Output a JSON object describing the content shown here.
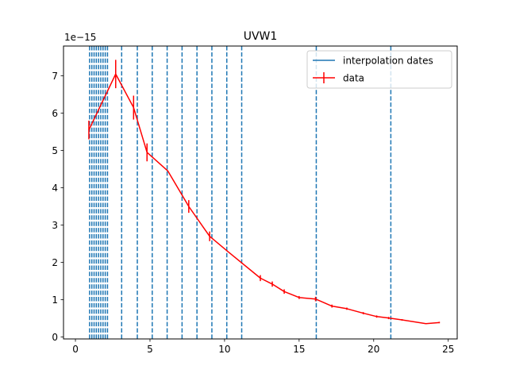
{
  "chart_data": {
    "type": "line",
    "title": "UVW1",
    "xlabel": "",
    "ylabel": "",
    "offset_label": "1e−15",
    "xlim": [
      -0.8,
      25.6
    ],
    "ylim": [
      -0.05,
      7.8
    ],
    "y_scale_factor": 1e-15,
    "x_ticks": [
      0,
      5,
      10,
      15,
      20,
      25
    ],
    "y_ticks": [
      0,
      1,
      2,
      3,
      4,
      5,
      6,
      7
    ],
    "x_tick_labels": [
      "0",
      "5",
      "10",
      "15",
      "20",
      "25"
    ],
    "y_tick_labels": [
      "0",
      "1",
      "2",
      "3",
      "4",
      "5",
      "6",
      "7"
    ],
    "legend_position": "top-right",
    "grid": false,
    "colors": {
      "interpolation": "#1f77b4",
      "data": "#ff0000"
    },
    "interpolation_dates": [
      0.95,
      1.1,
      1.25,
      1.4,
      1.55,
      1.7,
      1.85,
      2.0,
      2.15,
      3.1,
      4.15,
      5.15,
      6.15,
      7.15,
      8.15,
      9.15,
      10.15,
      11.15,
      16.15,
      21.15
    ],
    "series": [
      {
        "name": "data",
        "x": [
          0.9,
          2.7,
          3.9,
          4.8,
          6.2,
          7.6,
          9.0,
          10.2,
          12.4,
          13.2,
          14.0,
          15.0,
          16.1,
          17.2,
          18.2,
          19.3,
          20.2,
          21.0,
          21.9,
          23.5,
          24.4
        ],
        "y": [
          5.55,
          7.05,
          6.15,
          4.95,
          4.45,
          3.5,
          2.7,
          2.3,
          1.58,
          1.42,
          1.22,
          1.06,
          1.02,
          0.83,
          0.76,
          0.64,
          0.55,
          0.51,
          0.46,
          0.36,
          0.39
        ],
        "yerr": [
          0.25,
          0.38,
          0.32,
          0.24,
          0.0,
          0.17,
          0.13,
          0.0,
          0.08,
          0.07,
          0.06,
          0.04,
          0.06,
          0.04,
          0.03,
          0.03,
          0.03,
          0.03,
          0.02,
          0.0,
          0.02
        ]
      }
    ],
    "legend": [
      {
        "label": "interpolation dates",
        "kind": "line"
      },
      {
        "label": "data",
        "kind": "errorbar"
      }
    ]
  }
}
